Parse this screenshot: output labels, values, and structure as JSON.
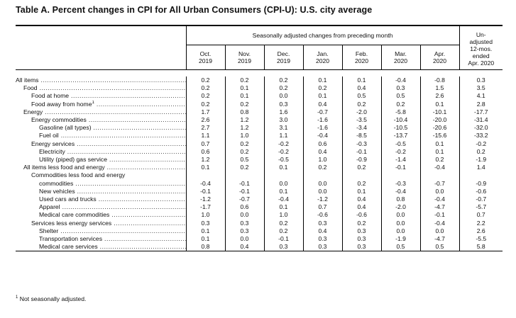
{
  "title": "Table A. Percent changes in CPI for All Urban Consumers (CPI-U): U.S. city average",
  "header": {
    "group_label": "Seasonally adjusted changes from preceding month",
    "unadjusted_label": [
      "Un-",
      "adjusted",
      "12-mos.",
      "ended",
      "Apr. 2020"
    ],
    "months": [
      {
        "m": "Oct.",
        "y": "2019"
      },
      {
        "m": "Nov.",
        "y": "2019"
      },
      {
        "m": "Dec.",
        "y": "2019"
      },
      {
        "m": "Jan.",
        "y": "2020"
      },
      {
        "m": "Feb.",
        "y": "2020"
      },
      {
        "m": "Mar.",
        "y": "2020"
      },
      {
        "m": "Apr.",
        "y": "2020"
      }
    ]
  },
  "rows": [
    {
      "label": "All items",
      "indent": 0,
      "values": [
        "0.2",
        "0.2",
        "0.2",
        "0.1",
        "0.1",
        "-0.4",
        "-0.8",
        "0.3"
      ]
    },
    {
      "label": "Food",
      "indent": 1,
      "values": [
        "0.2",
        "0.1",
        "0.2",
        "0.2",
        "0.4",
        "0.3",
        "1.5",
        "3.5"
      ]
    },
    {
      "label": "Food at home",
      "indent": 2,
      "values": [
        "0.2",
        "0.1",
        "0.0",
        "0.1",
        "0.5",
        "0.5",
        "2.6",
        "4.1"
      ]
    },
    {
      "label": "Food away from home",
      "sup": "1",
      "indent": 2,
      "values": [
        "0.2",
        "0.2",
        "0.3",
        "0.4",
        "0.2",
        "0.2",
        "0.1",
        "2.8"
      ]
    },
    {
      "label": "Energy",
      "indent": 1,
      "values": [
        "1.7",
        "0.8",
        "1.6",
        "-0.7",
        "-2.0",
        "-5.8",
        "-10.1",
        "-17.7"
      ]
    },
    {
      "label": "Energy commodities",
      "indent": 2,
      "values": [
        "2.6",
        "1.2",
        "3.0",
        "-1.6",
        "-3.5",
        "-10.4",
        "-20.0",
        "-31.4"
      ]
    },
    {
      "label": "Gasoline (all types)",
      "indent": 3,
      "values": [
        "2.7",
        "1.2",
        "3.1",
        "-1.6",
        "-3.4",
        "-10.5",
        "-20.6",
        "-32.0"
      ]
    },
    {
      "label": "Fuel oil",
      "indent": 3,
      "values": [
        "1.1",
        "1.0",
        "1.1",
        "-0.4",
        "-8.5",
        "-13.7",
        "-15.6",
        "-33.2"
      ]
    },
    {
      "label": "Energy services",
      "indent": 2,
      "values": [
        "0.7",
        "0.2",
        "-0.2",
        "0.6",
        "-0.3",
        "-0.5",
        "0.1",
        "-0.2"
      ]
    },
    {
      "label": "Electricity",
      "indent": 3,
      "values": [
        "0.6",
        "0.2",
        "-0.2",
        "0.4",
        "-0.1",
        "-0.2",
        "0.1",
        "0.2"
      ]
    },
    {
      "label": "Utility (piped) gas service",
      "indent": 3,
      "values": [
        "1.2",
        "0.5",
        "-0.5",
        "1.0",
        "-0.9",
        "-1.4",
        "0.2",
        "-1.9"
      ]
    },
    {
      "label": "All items less food and energy",
      "indent": 1,
      "values": [
        "0.1",
        "0.2",
        "0.1",
        "0.2",
        "0.2",
        "-0.1",
        "-0.4",
        "1.4"
      ]
    },
    {
      "label": "Commodities less food and energy",
      "indent": 2,
      "nodots": true,
      "values": [
        "",
        "",
        "",
        "",
        "",
        "",
        "",
        ""
      ]
    },
    {
      "label": "commodities",
      "indent": 3,
      "values": [
        "-0.4",
        "-0.1",
        "0.0",
        "0.0",
        "0.2",
        "-0.3",
        "-0.7",
        "-0.9"
      ]
    },
    {
      "label": "New vehicles",
      "indent": 3,
      "values": [
        "-0.1",
        "-0.1",
        "0.1",
        "0.0",
        "0.1",
        "-0.4",
        "0.0",
        "-0.6"
      ]
    },
    {
      "label": "Used cars and trucks",
      "indent": 3,
      "values": [
        "-1.2",
        "-0.7",
        "-0.4",
        "-1.2",
        "0.4",
        "0.8",
        "-0.4",
        "-0.7"
      ]
    },
    {
      "label": "Apparel",
      "indent": 3,
      "values": [
        "-1.7",
        "0.6",
        "0.1",
        "0.7",
        "0.4",
        "-2.0",
        "-4.7",
        "-5.7"
      ]
    },
    {
      "label": "Medical care commodities",
      "indent": 3,
      "values": [
        "1.0",
        "0.0",
        "1.0",
        "-0.6",
        "-0.6",
        "0.0",
        "-0.1",
        "0.7"
      ]
    },
    {
      "label": "Services less energy services",
      "indent": 2,
      "values": [
        "0.3",
        "0.3",
        "0.2",
        "0.3",
        "0.2",
        "0.0",
        "-0.4",
        "2.2"
      ]
    },
    {
      "label": "Shelter",
      "indent": 3,
      "values": [
        "0.1",
        "0.3",
        "0.2",
        "0.4",
        "0.3",
        "0.0",
        "0.0",
        "2.6"
      ]
    },
    {
      "label": "Transportation services",
      "indent": 3,
      "values": [
        "0.1",
        "0.0",
        "-0.1",
        "0.3",
        "0.3",
        "-1.9",
        "-4.7",
        "-5.5"
      ]
    },
    {
      "label": "Medical care services",
      "indent": 3,
      "values": [
        "0.8",
        "0.4",
        "0.3",
        "0.3",
        "0.3",
        "0.5",
        "0.5",
        "5.8"
      ]
    }
  ],
  "footnote": {
    "mark": "1",
    "text": " Not seasonally adjusted."
  }
}
